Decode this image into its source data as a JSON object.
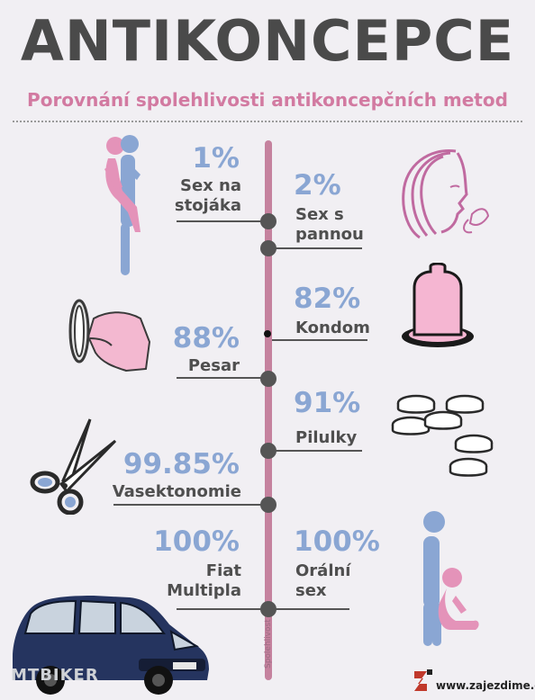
{
  "title": "ANTIKONCEPCE",
  "subtitle": "Porovnání spolehlivosti antikoncepčních metod",
  "axis_label": "Spolehlivost",
  "methods": [
    {
      "pct": "1%",
      "label": "Sex na\nstojáka",
      "side": "left"
    },
    {
      "pct": "2%",
      "label": "Sex s\npannou",
      "side": "right"
    },
    {
      "pct": "82%",
      "label": "Kondom",
      "side": "right"
    },
    {
      "pct": "88%",
      "label": "Pesar",
      "side": "left"
    },
    {
      "pct": "91%",
      "label": "Pilulky",
      "side": "right"
    },
    {
      "pct": "99.85%",
      "label": "Vasektonomie",
      "side": "left"
    },
    {
      "pct": "100%",
      "label": "Fiat\nMultipla",
      "side": "left"
    },
    {
      "pct": "100%",
      "label": "Orální\nsex",
      "side": "right"
    }
  ],
  "watermark_left": "MTBIKER",
  "watermark_right": "www.zajezdime.cz",
  "colors": {
    "accent_pink": "#d27aa1",
    "accent_blue": "#8aa6d3",
    "axis": "#c5829e",
    "text": "#4a4a4a"
  },
  "icons": [
    "couple-standing-icon",
    "woman-face-flower-icon",
    "condom-icon",
    "diaphragm-hand-icon",
    "pills-icon",
    "scissors-icon",
    "car-icon",
    "oral-sex-icon",
    "logo-icon"
  ]
}
